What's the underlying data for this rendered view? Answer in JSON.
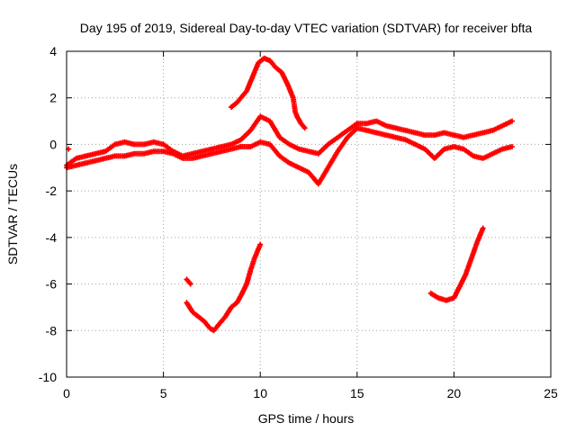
{
  "chart_data": {
    "type": "scatter",
    "title": "Day 195 of 2019, Sidereal Day-to-day VTEC variation (SDTVAR) for receiver bfta",
    "xlabel": "GPS time / hours",
    "ylabel": "SDTVAR / TECUs",
    "xlim": [
      0,
      25
    ],
    "ylim": [
      -10,
      4
    ],
    "xticks": [
      0,
      5,
      10,
      15,
      20,
      25
    ],
    "yticks": [
      -10,
      -8,
      -6,
      -4,
      -2,
      0,
      2,
      4
    ],
    "grid": true,
    "legend": "none",
    "marker": "+",
    "color": "#ff0000",
    "series": [
      {
        "name": "main-band-upper",
        "x": [
          0,
          0.5,
          1,
          1.5,
          2,
          2.5,
          3,
          3.5,
          4,
          4.5,
          5,
          5.5,
          6,
          6.5,
          7,
          7.5,
          8,
          8.5,
          9,
          9.5,
          10,
          10.5,
          11,
          11.5,
          12,
          12.5,
          13,
          13.5,
          14,
          14.5,
          15,
          15.5,
          16,
          16.5,
          17,
          17.5,
          18,
          18.5,
          19,
          19.5,
          20,
          20.5,
          21,
          21.5,
          22,
          22.5,
          23
        ],
        "values": [
          -0.9,
          -0.6,
          -0.5,
          -0.4,
          -0.3,
          0.0,
          0.1,
          0.0,
          0.0,
          0.1,
          0.0,
          -0.3,
          -0.5,
          -0.4,
          -0.3,
          -0.2,
          -0.1,
          0.0,
          0.2,
          0.6,
          1.2,
          1.0,
          0.3,
          0.0,
          -0.2,
          -0.3,
          -0.4,
          0.0,
          0.3,
          0.6,
          0.9,
          0.9,
          1.0,
          0.8,
          0.7,
          0.6,
          0.5,
          0.4,
          0.4,
          0.5,
          0.4,
          0.3,
          0.4,
          0.5,
          0.6,
          0.8,
          1.0
        ]
      },
      {
        "name": "main-band-lower",
        "x": [
          0,
          0.5,
          1,
          1.5,
          2,
          2.5,
          3,
          3.5,
          4,
          4.5,
          5,
          5.5,
          6,
          6.5,
          7,
          7.5,
          8,
          8.5,
          9,
          9.5,
          10,
          10.5,
          11,
          11.5,
          12,
          12.5,
          13,
          13.5,
          14,
          14.5,
          15,
          15.5,
          16,
          16.5,
          17,
          17.5,
          18,
          18.5,
          19,
          19.5,
          20,
          20.5,
          21,
          21.5,
          22,
          22.5,
          23
        ],
        "values": [
          -1.0,
          -0.9,
          -0.8,
          -0.7,
          -0.6,
          -0.5,
          -0.5,
          -0.4,
          -0.4,
          -0.3,
          -0.3,
          -0.4,
          -0.6,
          -0.6,
          -0.5,
          -0.4,
          -0.3,
          -0.2,
          -0.1,
          -0.1,
          0.1,
          0.0,
          -0.5,
          -0.8,
          -1.0,
          -1.2,
          -1.7,
          -1.0,
          -0.3,
          0.3,
          0.7,
          0.6,
          0.5,
          0.4,
          0.3,
          0.2,
          0.0,
          -0.2,
          -0.6,
          -0.2,
          -0.1,
          -0.2,
          -0.5,
          -0.6,
          -0.4,
          -0.2,
          -0.1
        ]
      },
      {
        "name": "hump-arc",
        "x": [
          8.5,
          8.8,
          9.0,
          9.3,
          9.6,
          9.9,
          10.2,
          10.5,
          10.8,
          11.1,
          11.4,
          11.7,
          11.8,
          11.9,
          12.1,
          12.3
        ],
        "values": [
          1.6,
          1.8,
          2.0,
          2.3,
          2.9,
          3.5,
          3.7,
          3.6,
          3.3,
          3.1,
          2.6,
          2.0,
          1.4,
          1.2,
          0.9,
          0.7
        ]
      },
      {
        "name": "dip-left-lead",
        "x": [
          6.2,
          6.4
        ],
        "values": [
          -5.8,
          -6.0
        ]
      },
      {
        "name": "dip-left",
        "x": [
          6.2,
          6.5,
          6.8,
          7.1,
          7.4,
          7.6,
          7.9,
          8.2,
          8.5,
          8.8,
          9.0,
          9.3,
          9.5,
          9.7,
          10.0
        ],
        "values": [
          -6.8,
          -7.2,
          -7.4,
          -7.6,
          -7.9,
          -8.0,
          -7.7,
          -7.4,
          -7.0,
          -6.8,
          -6.5,
          -6.0,
          -5.4,
          -4.9,
          -4.3
        ]
      },
      {
        "name": "dip-right",
        "x": [
          18.8,
          19.2,
          19.6,
          20.0,
          20.3,
          20.6,
          20.9,
          21.2,
          21.5
        ],
        "values": [
          -6.4,
          -6.6,
          -6.7,
          -6.6,
          -6.1,
          -5.6,
          -4.9,
          -4.2,
          -3.6
        ]
      },
      {
        "name": "isolated",
        "x": [
          0.1
        ],
        "values": [
          -0.2
        ]
      }
    ]
  }
}
